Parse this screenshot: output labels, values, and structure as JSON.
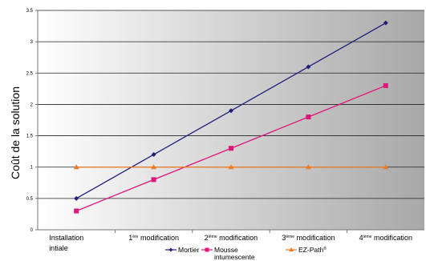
{
  "chart_data": {
    "type": "line",
    "ylabel": "Coût de la solution",
    "xlabel": "",
    "ylim": [
      0,
      3.5
    ],
    "y_ticks": [
      "0",
      "0.5",
      "1",
      "1.5",
      "2",
      "2.5",
      "3",
      "3.5"
    ],
    "grid": true,
    "legend_position": "bottom",
    "categories": [
      {
        "line1": "Installation",
        "line2": "intiale"
      },
      {
        "prefix": "1",
        "sup": "ère",
        "rest": " modification"
      },
      {
        "prefix": "2",
        "sup": "ième",
        "rest": " modification"
      },
      {
        "prefix": "3",
        "sup": "ième",
        "rest": " modification"
      },
      {
        "prefix": "4",
        "sup": "ième",
        "rest": " modification"
      }
    ],
    "series": [
      {
        "name": "Mortier",
        "values": [
          0.5,
          1.2,
          1.9,
          2.6,
          3.3
        ],
        "color": "#1f1f7a",
        "marker": "diamond"
      },
      {
        "name_line1": "Mousse",
        "name_line2": "intumescente",
        "values": [
          0.3,
          0.8,
          1.3,
          1.8,
          2.3
        ],
        "color": "#e0157a",
        "marker": "square"
      },
      {
        "name": "EZ-Path",
        "name_sup": "®",
        "values": [
          1.0,
          1.0,
          1.0,
          1.0,
          1.0
        ],
        "color": "#f07a20",
        "marker": "triangle"
      }
    ]
  }
}
